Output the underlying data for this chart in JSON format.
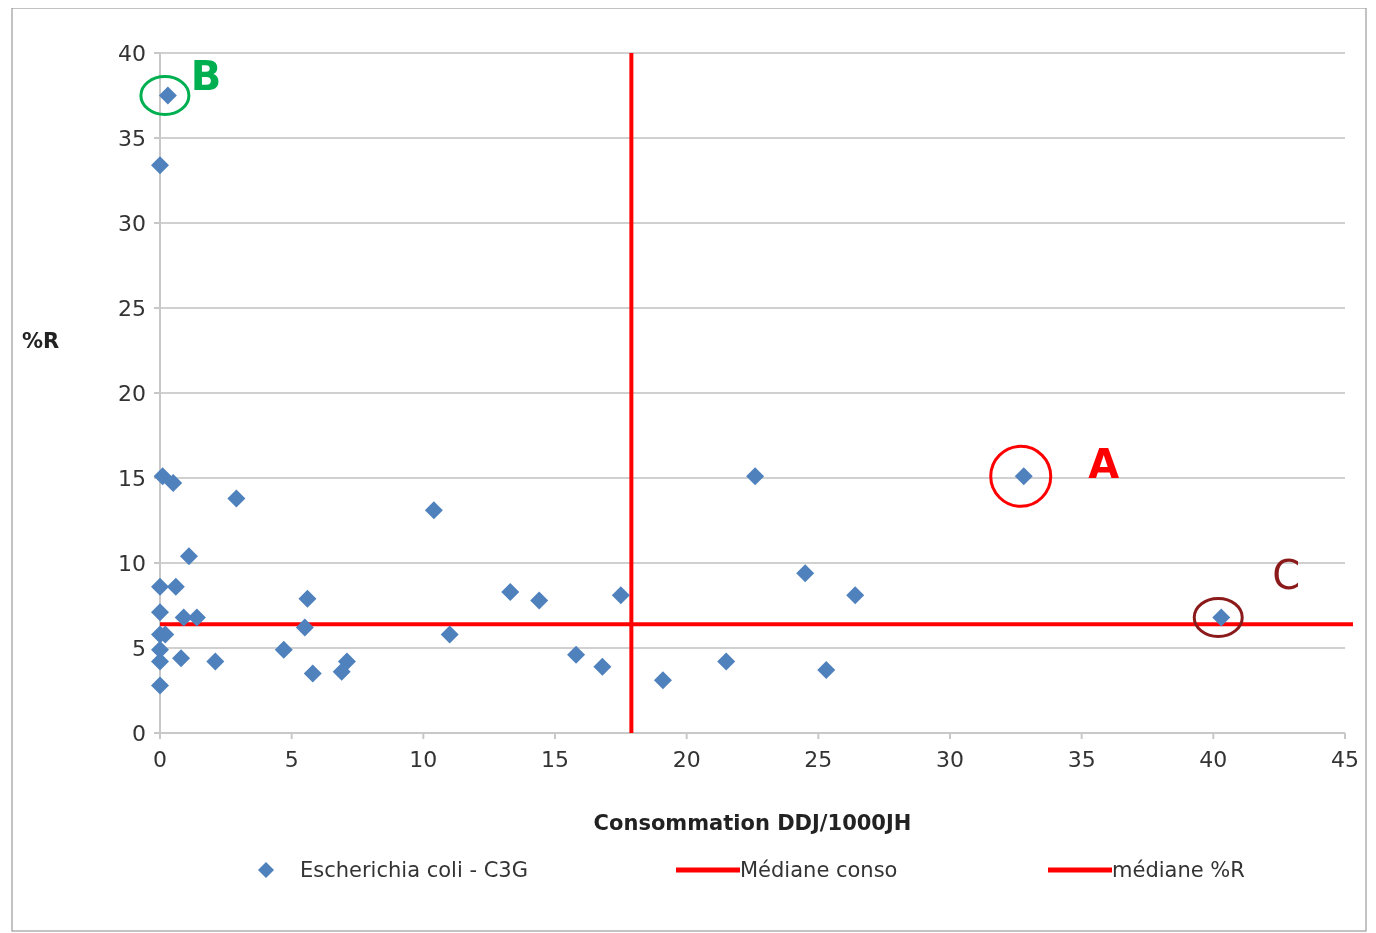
{
  "chart_data": {
    "type": "scatter",
    "xlabel": "Consommation DDJ/1000JH",
    "ylabel": "%R",
    "xlim": [
      0,
      45
    ],
    "xticks": [
      0,
      5,
      10,
      15,
      20,
      25,
      30,
      35,
      40,
      45
    ],
    "ylim": [
      0,
      40
    ],
    "yticks": [
      0,
      5,
      10,
      15,
      20,
      25,
      30,
      35,
      40
    ],
    "grid": "y",
    "marker": "diamond",
    "legend": "bottom",
    "series": [
      {
        "name": "Escherichia coli - C3G",
        "color": "#4f81bd",
        "x": [
          0.3,
          0,
          0.1,
          0.5,
          2.9,
          1.1,
          0,
          0.6,
          0,
          0.9,
          1.4,
          0,
          0.2,
          0,
          0,
          0.8,
          2.1,
          0,
          4.7,
          5.6,
          5.5,
          5.8,
          6.9,
          7.1,
          10.4,
          11.0,
          13.3,
          14.4,
          15.8,
          16.8,
          17.5,
          19.1,
          21.5,
          22.6,
          24.5,
          25.3,
          26.4,
          32.8,
          40.3
        ],
        "values": [
          37.5,
          33.4,
          15.1,
          14.7,
          13.8,
          10.4,
          8.6,
          8.6,
          7.1,
          6.8,
          6.8,
          5.8,
          5.8,
          4.9,
          4.2,
          4.4,
          4.2,
          2.8,
          4.9,
          7.9,
          6.2,
          3.5,
          3.6,
          4.2,
          13.1,
          5.8,
          8.3,
          7.8,
          4.6,
          3.9,
          8.1,
          3.1,
          4.2,
          15.1,
          9.4,
          3.7,
          8.1,
          15.1,
          6.8
        ]
      }
    ],
    "ref_lines": [
      {
        "axis": "x",
        "value": 17.9,
        "label": "Médiane conso",
        "color": "#ff0000"
      },
      {
        "axis": "y",
        "value": 6.4,
        "label": "médiane %R",
        "color": "#ff0000"
      }
    ],
    "annotations": [
      {
        "text": "A",
        "x": 32.8,
        "y": 15.1
      },
      {
        "text": "B",
        "x": 0.3,
        "y": 37.5
      },
      {
        "text": "C",
        "x": 40.3,
        "y": 6.8
      }
    ]
  }
}
